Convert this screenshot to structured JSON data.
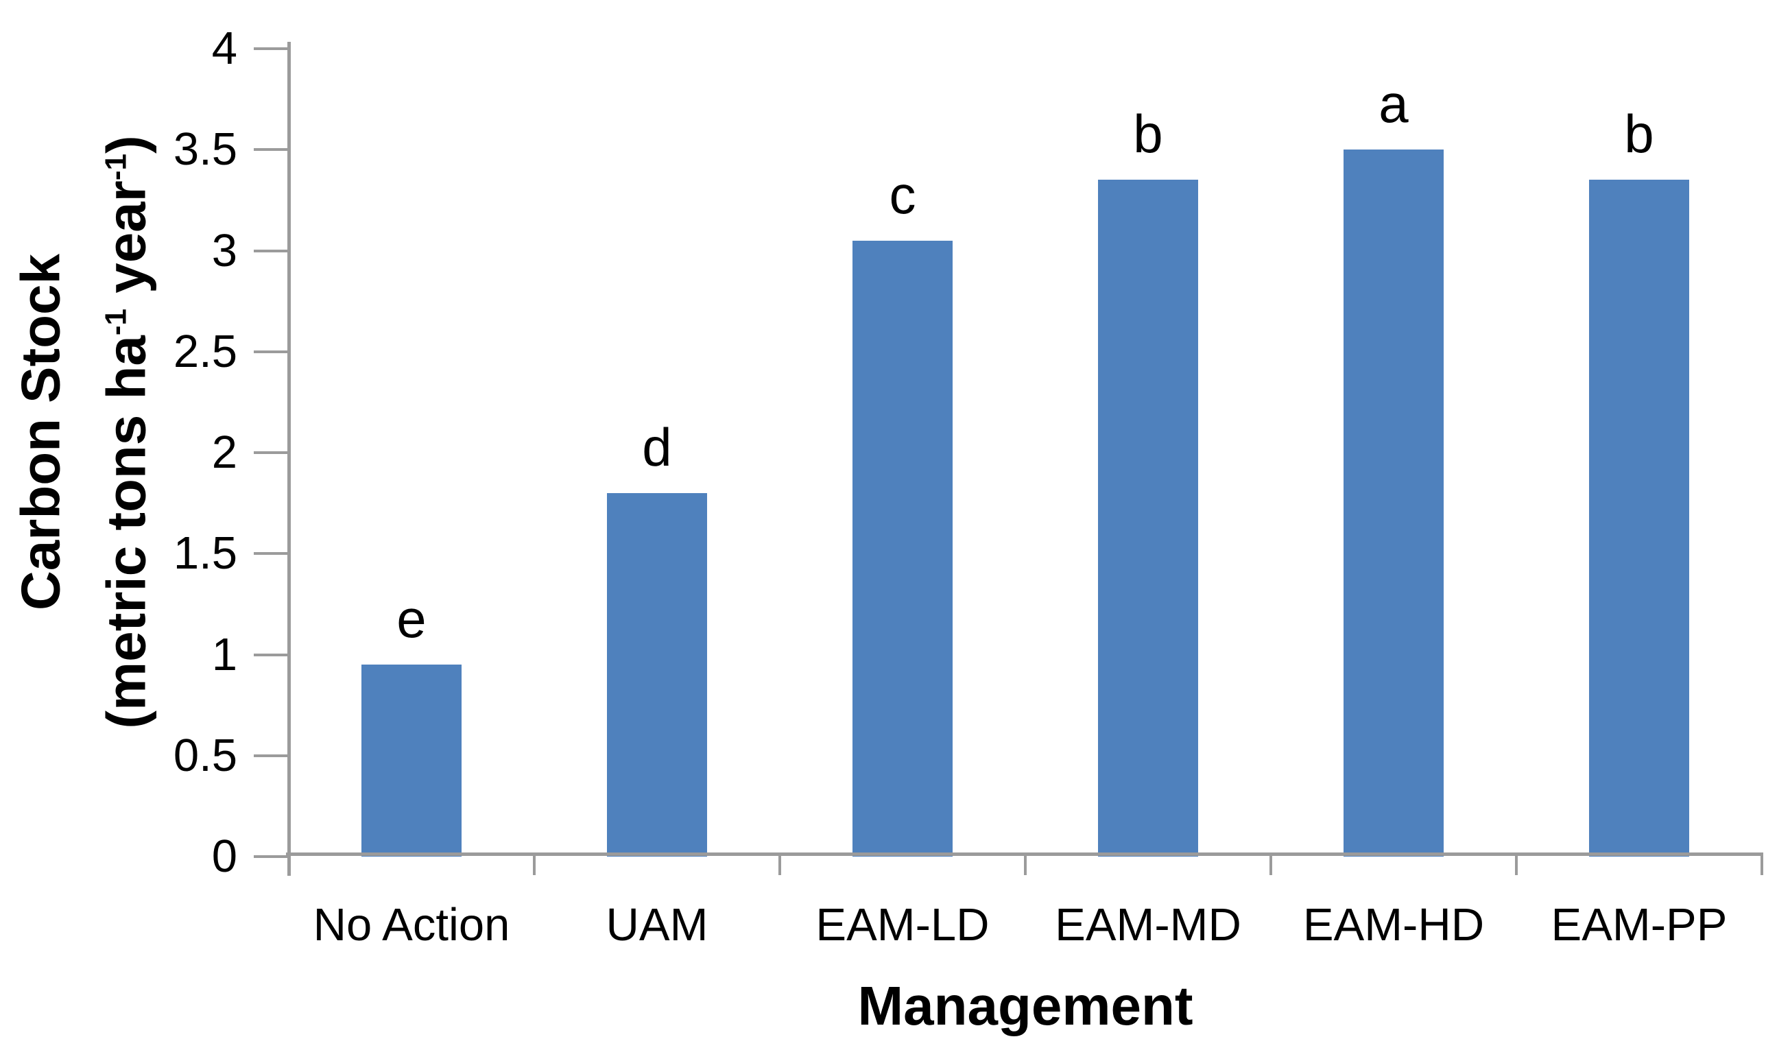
{
  "chart_data": {
    "type": "bar",
    "title": "",
    "categories": [
      "No Action",
      "UAM",
      "EAM-LD",
      "EAM-MD",
      "EAM-HD",
      "EAM-PP"
    ],
    "values": [
      0.95,
      1.8,
      3.05,
      3.35,
      3.5,
      3.35
    ],
    "significance_letters": [
      "e",
      "d",
      "c",
      "b",
      "a",
      "b"
    ],
    "xlabel": "Management",
    "ylabel": "Carbon Stock (metric tons ha⁻¹ year⁻¹)",
    "ylabel_line1": "Carbon Stock",
    "ylabel_line2": {
      "p1": "(metric tons ha",
      "sup1": "-1",
      "p2": " year",
      "sup2": "-1",
      "p3": ")"
    },
    "ylim": [
      0,
      4
    ],
    "ytick_step": 0.5,
    "ytick_labels": [
      "0",
      "0.5",
      "1",
      "1.5",
      "2",
      "2.5",
      "3",
      "3.5",
      "4"
    ],
    "grid": false,
    "legend": "none",
    "colors": {
      "bar": "#4F81BD",
      "axis": "#9B9B9B",
      "text": "#000000"
    }
  }
}
